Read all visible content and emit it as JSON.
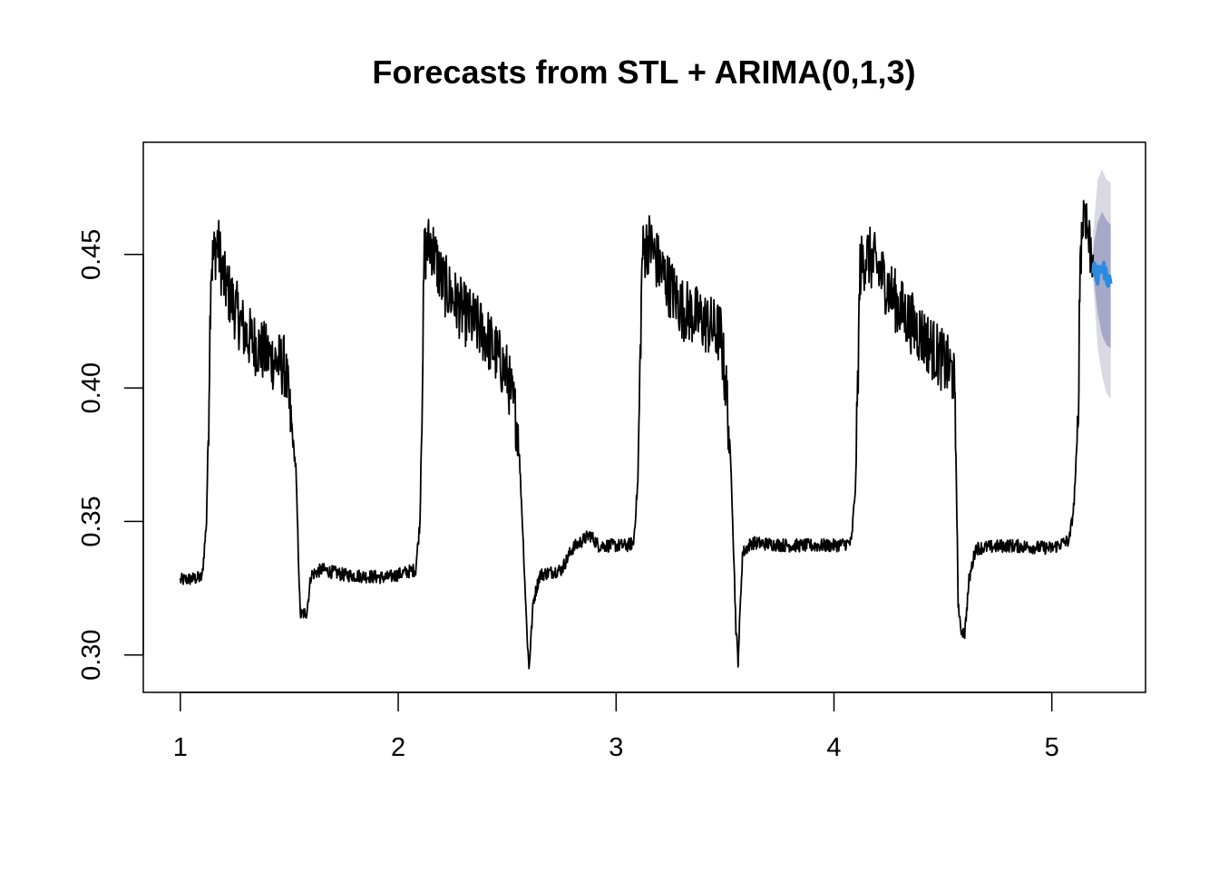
{
  "chart_data": {
    "type": "line",
    "title": "Forecasts from STL +  ARIMA(0,1,3)",
    "xlabel": "",
    "ylabel": "",
    "xlim": [
      0.83,
      5.43
    ],
    "ylim": [
      0.286,
      0.492
    ],
    "x_ticks": [
      1,
      2,
      3,
      4,
      5
    ],
    "x_tick_labels": [
      "1",
      "2",
      "3",
      "4",
      "5"
    ],
    "y_ticks": [
      0.3,
      0.35,
      0.4,
      0.45
    ],
    "y_tick_labels": [
      "0.30",
      "0.35",
      "0.40",
      "0.45"
    ],
    "grid": false,
    "legend": "none",
    "colors": {
      "observed": "#000000",
      "forecast": "#2b8cdf",
      "pi80": "#a7a8c8",
      "pi95": "#d9d9e3"
    },
    "observed_keypoints": [
      [
        1.0,
        0.328
      ],
      [
        1.1,
        0.329
      ],
      [
        1.12,
        0.35
      ],
      [
        1.13,
        0.39
      ],
      [
        1.14,
        0.445
      ],
      [
        1.17,
        0.455
      ],
      [
        1.2,
        0.44
      ],
      [
        1.3,
        0.42
      ],
      [
        1.4,
        0.412
      ],
      [
        1.48,
        0.408
      ],
      [
        1.51,
        0.385
      ],
      [
        1.53,
        0.37
      ],
      [
        1.55,
        0.315
      ],
      [
        1.58,
        0.316
      ],
      [
        1.6,
        0.33
      ],
      [
        1.65,
        0.332
      ],
      [
        1.75,
        0.33
      ],
      [
        1.95,
        0.329
      ],
      [
        2.08,
        0.332
      ],
      [
        2.1,
        0.35
      ],
      [
        2.12,
        0.45
      ],
      [
        2.15,
        0.455
      ],
      [
        2.2,
        0.44
      ],
      [
        2.3,
        0.428
      ],
      [
        2.4,
        0.42
      ],
      [
        2.5,
        0.405
      ],
      [
        2.55,
        0.385
      ],
      [
        2.57,
        0.35
      ],
      [
        2.59,
        0.31
      ],
      [
        2.6,
        0.295
      ],
      [
        2.62,
        0.32
      ],
      [
        2.65,
        0.33
      ],
      [
        2.75,
        0.332
      ],
      [
        2.8,
        0.34
      ],
      [
        2.88,
        0.345
      ],
      [
        2.92,
        0.341
      ],
      [
        3.05,
        0.341
      ],
      [
        3.08,
        0.342
      ],
      [
        3.1,
        0.365
      ],
      [
        3.12,
        0.45
      ],
      [
        3.15,
        0.455
      ],
      [
        3.2,
        0.445
      ],
      [
        3.3,
        0.43
      ],
      [
        3.4,
        0.425
      ],
      [
        3.48,
        0.42
      ],
      [
        3.51,
        0.395
      ],
      [
        3.53,
        0.365
      ],
      [
        3.55,
        0.31
      ],
      [
        3.56,
        0.298
      ],
      [
        3.58,
        0.338
      ],
      [
        3.62,
        0.342
      ],
      [
        3.8,
        0.341
      ],
      [
        4.0,
        0.341
      ],
      [
        4.08,
        0.342
      ],
      [
        4.1,
        0.365
      ],
      [
        4.12,
        0.445
      ],
      [
        4.15,
        0.45
      ],
      [
        4.2,
        0.445
      ],
      [
        4.3,
        0.43
      ],
      [
        4.4,
        0.42
      ],
      [
        4.5,
        0.41
      ],
      [
        4.55,
        0.405
      ],
      [
        4.56,
        0.375
      ],
      [
        4.57,
        0.32
      ],
      [
        4.58,
        0.31
      ],
      [
        4.6,
        0.308
      ],
      [
        4.62,
        0.328
      ],
      [
        4.65,
        0.34
      ],
      [
        4.8,
        0.341
      ],
      [
        5.0,
        0.34
      ],
      [
        5.08,
        0.343
      ],
      [
        5.1,
        0.355
      ],
      [
        5.12,
        0.385
      ],
      [
        5.13,
        0.45
      ],
      [
        5.15,
        0.47
      ],
      [
        5.17,
        0.455
      ],
      [
        5.19,
        0.45
      ]
    ],
    "forecast_keypoints": [
      [
        5.19,
        0.445
      ],
      [
        5.21,
        0.441
      ],
      [
        5.23,
        0.446
      ],
      [
        5.25,
        0.442
      ],
      [
        5.27,
        0.439
      ]
    ],
    "pi95_upper": [
      [
        5.19,
        0.458
      ],
      [
        5.21,
        0.478
      ],
      [
        5.23,
        0.482
      ],
      [
        5.25,
        0.478
      ],
      [
        5.27,
        0.477
      ]
    ],
    "pi95_lower": [
      [
        5.19,
        0.44
      ],
      [
        5.21,
        0.415
      ],
      [
        5.23,
        0.405
      ],
      [
        5.25,
        0.398
      ],
      [
        5.27,
        0.396
      ]
    ],
    "pi80_upper": [
      [
        5.19,
        0.452
      ],
      [
        5.21,
        0.462
      ],
      [
        5.23,
        0.466
      ],
      [
        5.25,
        0.463
      ],
      [
        5.27,
        0.461
      ]
    ],
    "pi80_lower": [
      [
        5.19,
        0.443
      ],
      [
        5.21,
        0.428
      ],
      [
        5.23,
        0.42
      ],
      [
        5.25,
        0.416
      ],
      [
        5.27,
        0.415
      ]
    ]
  }
}
